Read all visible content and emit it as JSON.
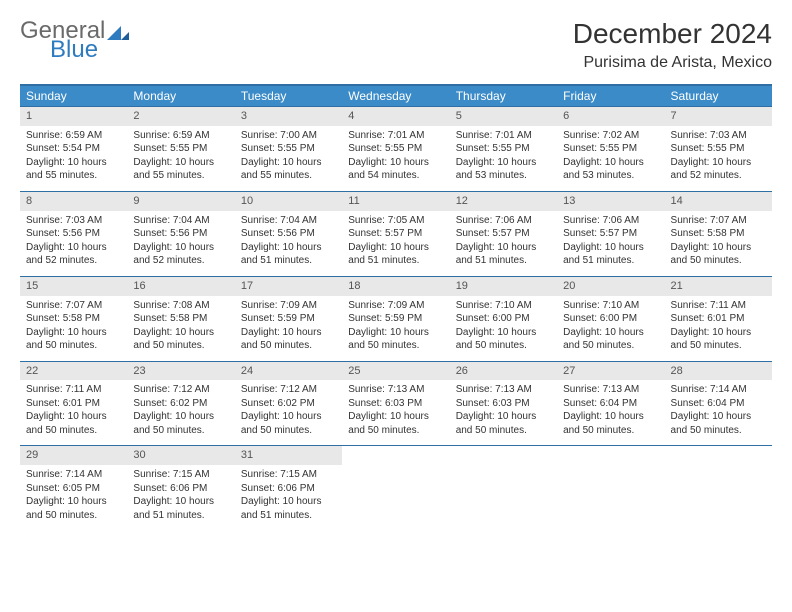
{
  "brand": {
    "general": "General",
    "blue": "Blue"
  },
  "header": {
    "title": "December 2024",
    "location": "Purisima de Arista, Mexico"
  },
  "colors": {
    "header_bg": "#3b8bc8",
    "header_border": "#2f6fa3",
    "daynum_bg": "#e8e8e8",
    "text": "#333333",
    "logo_gray": "#6a6a6a",
    "logo_blue": "#2f7bbf"
  },
  "weekdays": [
    "Sunday",
    "Monday",
    "Tuesday",
    "Wednesday",
    "Thursday",
    "Friday",
    "Saturday"
  ],
  "days": [
    {
      "n": "1",
      "sr": "6:59 AM",
      "ss": "5:54 PM",
      "dl": "10 hours and 55 minutes."
    },
    {
      "n": "2",
      "sr": "6:59 AM",
      "ss": "5:55 PM",
      "dl": "10 hours and 55 minutes."
    },
    {
      "n": "3",
      "sr": "7:00 AM",
      "ss": "5:55 PM",
      "dl": "10 hours and 55 minutes."
    },
    {
      "n": "4",
      "sr": "7:01 AM",
      "ss": "5:55 PM",
      "dl": "10 hours and 54 minutes."
    },
    {
      "n": "5",
      "sr": "7:01 AM",
      "ss": "5:55 PM",
      "dl": "10 hours and 53 minutes."
    },
    {
      "n": "6",
      "sr": "7:02 AM",
      "ss": "5:55 PM",
      "dl": "10 hours and 53 minutes."
    },
    {
      "n": "7",
      "sr": "7:03 AM",
      "ss": "5:55 PM",
      "dl": "10 hours and 52 minutes."
    },
    {
      "n": "8",
      "sr": "7:03 AM",
      "ss": "5:56 PM",
      "dl": "10 hours and 52 minutes."
    },
    {
      "n": "9",
      "sr": "7:04 AM",
      "ss": "5:56 PM",
      "dl": "10 hours and 52 minutes."
    },
    {
      "n": "10",
      "sr": "7:04 AM",
      "ss": "5:56 PM",
      "dl": "10 hours and 51 minutes."
    },
    {
      "n": "11",
      "sr": "7:05 AM",
      "ss": "5:57 PM",
      "dl": "10 hours and 51 minutes."
    },
    {
      "n": "12",
      "sr": "7:06 AM",
      "ss": "5:57 PM",
      "dl": "10 hours and 51 minutes."
    },
    {
      "n": "13",
      "sr": "7:06 AM",
      "ss": "5:57 PM",
      "dl": "10 hours and 51 minutes."
    },
    {
      "n": "14",
      "sr": "7:07 AM",
      "ss": "5:58 PM",
      "dl": "10 hours and 50 minutes."
    },
    {
      "n": "15",
      "sr": "7:07 AM",
      "ss": "5:58 PM",
      "dl": "10 hours and 50 minutes."
    },
    {
      "n": "16",
      "sr": "7:08 AM",
      "ss": "5:58 PM",
      "dl": "10 hours and 50 minutes."
    },
    {
      "n": "17",
      "sr": "7:09 AM",
      "ss": "5:59 PM",
      "dl": "10 hours and 50 minutes."
    },
    {
      "n": "18",
      "sr": "7:09 AM",
      "ss": "5:59 PM",
      "dl": "10 hours and 50 minutes."
    },
    {
      "n": "19",
      "sr": "7:10 AM",
      "ss": "6:00 PM",
      "dl": "10 hours and 50 minutes."
    },
    {
      "n": "20",
      "sr": "7:10 AM",
      "ss": "6:00 PM",
      "dl": "10 hours and 50 minutes."
    },
    {
      "n": "21",
      "sr": "7:11 AM",
      "ss": "6:01 PM",
      "dl": "10 hours and 50 minutes."
    },
    {
      "n": "22",
      "sr": "7:11 AM",
      "ss": "6:01 PM",
      "dl": "10 hours and 50 minutes."
    },
    {
      "n": "23",
      "sr": "7:12 AM",
      "ss": "6:02 PM",
      "dl": "10 hours and 50 minutes."
    },
    {
      "n": "24",
      "sr": "7:12 AM",
      "ss": "6:02 PM",
      "dl": "10 hours and 50 minutes."
    },
    {
      "n": "25",
      "sr": "7:13 AM",
      "ss": "6:03 PM",
      "dl": "10 hours and 50 minutes."
    },
    {
      "n": "26",
      "sr": "7:13 AM",
      "ss": "6:03 PM",
      "dl": "10 hours and 50 minutes."
    },
    {
      "n": "27",
      "sr": "7:13 AM",
      "ss": "6:04 PM",
      "dl": "10 hours and 50 minutes."
    },
    {
      "n": "28",
      "sr": "7:14 AM",
      "ss": "6:04 PM",
      "dl": "10 hours and 50 minutes."
    },
    {
      "n": "29",
      "sr": "7:14 AM",
      "ss": "6:05 PM",
      "dl": "10 hours and 50 minutes."
    },
    {
      "n": "30",
      "sr": "7:15 AM",
      "ss": "6:06 PM",
      "dl": "10 hours and 51 minutes."
    },
    {
      "n": "31",
      "sr": "7:15 AM",
      "ss": "6:06 PM",
      "dl": "10 hours and 51 minutes."
    }
  ],
  "labels": {
    "sunrise": "Sunrise: ",
    "sunset": "Sunset: ",
    "daylight": "Daylight: "
  }
}
